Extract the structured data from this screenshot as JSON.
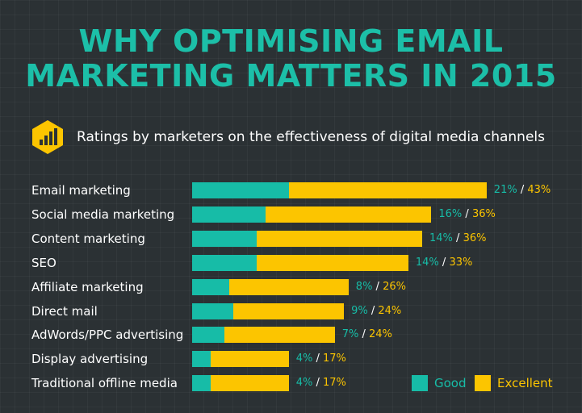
{
  "colors": {
    "good": "#17bca7",
    "excellent": "#fcc500",
    "title": "#1cbfa8",
    "background": "#2b3134"
  },
  "header": {
    "title_line1": "WHY OPTIMISING EMAIL",
    "title_line2": "MARKETING MATTERS IN 2015",
    "subtitle": "Ratings by marketers on the effectiveness of digital media channels",
    "icon": "bar-chart-hexagon-icon"
  },
  "chart_data": {
    "type": "bar",
    "orientation": "horizontal",
    "stacked": true,
    "categories": [
      "Email marketing",
      "Social media marketing",
      "Content marketing",
      "SEO",
      "Affiliate marketing",
      "Direct mail",
      "AdWords/PPC advertising",
      "Display advertising",
      "Traditional offline media"
    ],
    "series": [
      {
        "name": "Good",
        "values": [
          21,
          16,
          14,
          14,
          8,
          9,
          7,
          4,
          4
        ],
        "unit": "%"
      },
      {
        "name": "Excellent",
        "values": [
          43,
          36,
          36,
          33,
          26,
          24,
          24,
          17,
          17
        ],
        "unit": "%"
      }
    ],
    "legend": [
      "Good",
      "Excellent"
    ],
    "legend_position": "bottom-right",
    "grid": false
  }
}
